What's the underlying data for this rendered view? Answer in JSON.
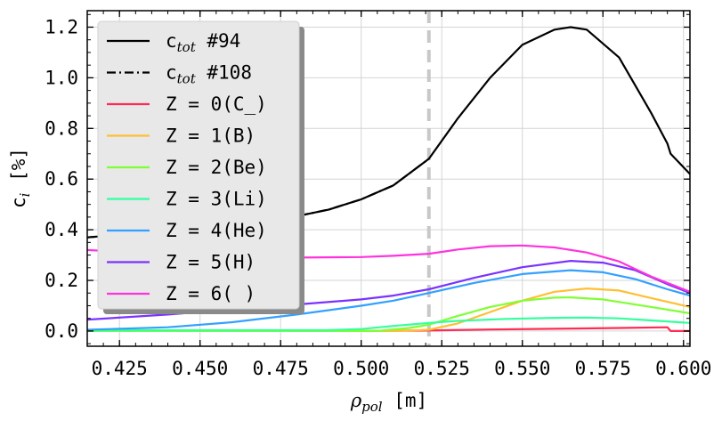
{
  "chart_data": {
    "type": "line",
    "xlabel_main": "ρ",
    "xlabel_sub": "pol",
    "xlabel_unit": " [m]",
    "ylabel_main": "c",
    "ylabel_sub": "i",
    "ylabel_unit": " [%]",
    "xlim": [
      0.415,
      0.602
    ],
    "ylim": [
      -0.06,
      1.265
    ],
    "xticks": [
      0.425,
      0.45,
      0.475,
      0.5,
      0.525,
      0.55,
      0.575,
      0.6
    ],
    "xtick_labels": [
      "0.425",
      "0.450",
      "0.475",
      "0.500",
      "0.525",
      "0.550",
      "0.575",
      "0.600"
    ],
    "yticks": [
      0.0,
      0.2,
      0.4,
      0.6,
      0.8,
      1.0,
      1.2
    ],
    "ytick_labels": [
      "0.0",
      "0.2",
      "0.4",
      "0.6",
      "0.8",
      "1.0",
      "1.2"
    ],
    "grid": true,
    "vertical_line_x": 0.521,
    "legend_placement": "upper-left",
    "series": [
      {
        "name_main": "c",
        "name_sub": "tot",
        "name_tail": "  #94",
        "color": "#000000",
        "style": "solid",
        "points": [
          [
            0.415,
            0.37
          ],
          [
            0.43,
            0.385
          ],
          [
            0.445,
            0.4
          ],
          [
            0.46,
            0.42
          ],
          [
            0.475,
            0.44
          ],
          [
            0.49,
            0.48
          ],
          [
            0.5,
            0.52
          ],
          [
            0.51,
            0.575
          ],
          [
            0.521,
            0.68
          ],
          [
            0.53,
            0.84
          ],
          [
            0.54,
            1.0
          ],
          [
            0.55,
            1.13
          ],
          [
            0.56,
            1.19
          ],
          [
            0.565,
            1.2
          ],
          [
            0.57,
            1.19
          ],
          [
            0.58,
            1.08
          ],
          [
            0.59,
            0.86
          ],
          [
            0.595,
            0.74
          ],
          [
            0.596,
            0.7
          ],
          [
            0.602,
            0.62
          ]
        ]
      },
      {
        "name_main": "c",
        "name_sub": "tot",
        "name_tail": "  #108",
        "color": "#000000",
        "style": "dashdot",
        "points": [
          [
            0.415,
            0.37
          ],
          [
            0.43,
            0.385
          ],
          [
            0.445,
            0.4
          ],
          [
            0.46,
            0.42
          ],
          [
            0.475,
            0.44
          ],
          [
            0.49,
            0.48
          ],
          [
            0.5,
            0.52
          ],
          [
            0.51,
            0.575
          ],
          [
            0.521,
            0.68
          ]
        ]
      },
      {
        "name_main": " Z = 0(C_)",
        "color": "#ff2a55",
        "style": "solid",
        "points": [
          [
            0.415,
            0.0
          ],
          [
            0.5,
            0.0
          ],
          [
            0.52,
            0.002
          ],
          [
            0.54,
            0.006
          ],
          [
            0.56,
            0.009
          ],
          [
            0.58,
            0.012
          ],
          [
            0.595,
            0.015
          ],
          [
            0.596,
            0.0
          ],
          [
            0.602,
            0.0
          ]
        ]
      },
      {
        "name_main": " Z = 1(B)",
        "color": "#ffbf33",
        "style": "solid",
        "points": [
          [
            0.415,
            0.0
          ],
          [
            0.51,
            0.0
          ],
          [
            0.521,
            0.005
          ],
          [
            0.53,
            0.03
          ],
          [
            0.54,
            0.075
          ],
          [
            0.55,
            0.12
          ],
          [
            0.56,
            0.155
          ],
          [
            0.57,
            0.168
          ],
          [
            0.58,
            0.16
          ],
          [
            0.59,
            0.13
          ],
          [
            0.602,
            0.095
          ]
        ]
      },
      {
        "name_main": " Z = 2(Be)",
        "color": "#7fff33",
        "style": "solid",
        "points": [
          [
            0.415,
            0.0
          ],
          [
            0.505,
            0.0
          ],
          [
            0.515,
            0.012
          ],
          [
            0.521,
            0.025
          ],
          [
            0.53,
            0.06
          ],
          [
            0.54,
            0.095
          ],
          [
            0.55,
            0.12
          ],
          [
            0.56,
            0.132
          ],
          [
            0.565,
            0.133
          ],
          [
            0.575,
            0.125
          ],
          [
            0.59,
            0.095
          ],
          [
            0.602,
            0.07
          ]
        ]
      },
      {
        "name_main": " Z = 3(Li)",
        "color": "#33ff9f",
        "style": "solid",
        "points": [
          [
            0.415,
            0.003
          ],
          [
            0.49,
            0.004
          ],
          [
            0.5,
            0.008
          ],
          [
            0.51,
            0.02
          ],
          [
            0.521,
            0.032
          ],
          [
            0.53,
            0.04
          ],
          [
            0.545,
            0.048
          ],
          [
            0.56,
            0.052
          ],
          [
            0.57,
            0.053
          ],
          [
            0.58,
            0.05
          ],
          [
            0.59,
            0.042
          ],
          [
            0.602,
            0.032
          ]
        ]
      },
      {
        "name_main": " Z = 4(He)",
        "color": "#33a0ff",
        "style": "solid",
        "points": [
          [
            0.415,
            0.005
          ],
          [
            0.44,
            0.015
          ],
          [
            0.46,
            0.035
          ],
          [
            0.48,
            0.065
          ],
          [
            0.5,
            0.1
          ],
          [
            0.51,
            0.12
          ],
          [
            0.521,
            0.15
          ],
          [
            0.535,
            0.19
          ],
          [
            0.55,
            0.225
          ],
          [
            0.565,
            0.24
          ],
          [
            0.575,
            0.232
          ],
          [
            0.585,
            0.205
          ],
          [
            0.595,
            0.165
          ],
          [
            0.602,
            0.14
          ]
        ]
      },
      {
        "name_main": " Z = 5(H)",
        "color": "#7a33ff",
        "style": "solid",
        "points": [
          [
            0.415,
            0.045
          ],
          [
            0.44,
            0.065
          ],
          [
            0.46,
            0.085
          ],
          [
            0.48,
            0.105
          ],
          [
            0.5,
            0.125
          ],
          [
            0.51,
            0.14
          ],
          [
            0.521,
            0.165
          ],
          [
            0.535,
            0.21
          ],
          [
            0.55,
            0.252
          ],
          [
            0.565,
            0.277
          ],
          [
            0.575,
            0.27
          ],
          [
            0.585,
            0.24
          ],
          [
            0.595,
            0.185
          ],
          [
            0.602,
            0.15
          ]
        ]
      },
      {
        "name_main": " Z = 6( )",
        "color": "#ff33dd",
        "style": "solid",
        "points": [
          [
            0.415,
            0.32
          ],
          [
            0.43,
            0.31
          ],
          [
            0.44,
            0.3
          ],
          [
            0.46,
            0.292
          ],
          [
            0.48,
            0.29
          ],
          [
            0.5,
            0.292
          ],
          [
            0.51,
            0.297
          ],
          [
            0.521,
            0.305
          ],
          [
            0.53,
            0.322
          ],
          [
            0.54,
            0.335
          ],
          [
            0.55,
            0.338
          ],
          [
            0.56,
            0.33
          ],
          [
            0.57,
            0.31
          ],
          [
            0.58,
            0.275
          ],
          [
            0.59,
            0.215
          ],
          [
            0.602,
            0.155
          ]
        ]
      }
    ]
  }
}
